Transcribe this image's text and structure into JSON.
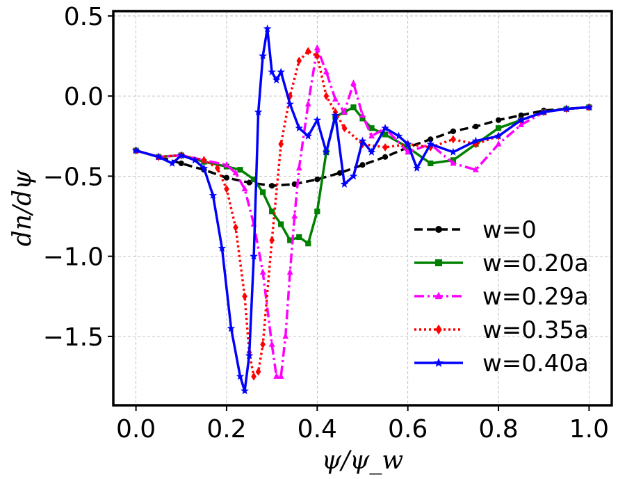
{
  "chart_data": {
    "type": "line",
    "title": "",
    "xlabel": "ψ/ψ_w",
    "ylabel": "dn/dψ",
    "xlim": [
      -0.05,
      1.05
    ],
    "ylim": [
      -1.93,
      0.53
    ],
    "grid": true,
    "legend_position": "lower-right",
    "xticks": [
      0.0,
      0.2,
      0.4,
      0.6,
      0.8,
      1.0
    ],
    "xtick_labels": [
      "0.0",
      "0.2",
      "0.4",
      "0.6",
      "0.8",
      "1.0"
    ],
    "yticks": [
      0.5,
      0.0,
      -0.5,
      -1.0,
      -1.5
    ],
    "ytick_labels": [
      "0.5",
      "0.0",
      "−0.5",
      "−1.0",
      "−1.5"
    ],
    "series": [
      {
        "name": "w=0",
        "color": "#000000",
        "linestyle": "dashed",
        "marker": "circle",
        "x": [
          0.0,
          0.05,
          0.1,
          0.15,
          0.2,
          0.25,
          0.3,
          0.35,
          0.4,
          0.45,
          0.5,
          0.55,
          0.6,
          0.65,
          0.7,
          0.75,
          0.8,
          0.85,
          0.9,
          0.95,
          1.0
        ],
        "y": [
          -0.34,
          -0.38,
          -0.42,
          -0.46,
          -0.51,
          -0.54,
          -0.56,
          -0.55,
          -0.52,
          -0.48,
          -0.43,
          -0.38,
          -0.32,
          -0.27,
          -0.22,
          -0.19,
          -0.15,
          -0.12,
          -0.09,
          -0.08,
          -0.07
        ]
      },
      {
        "name": "w=0.20a",
        "color": "#008000",
        "linestyle": "solid",
        "marker": "square",
        "x": [
          0.0,
          0.05,
          0.1,
          0.15,
          0.2,
          0.23,
          0.26,
          0.28,
          0.3,
          0.32,
          0.34,
          0.36,
          0.38,
          0.4,
          0.42,
          0.44,
          0.46,
          0.48,
          0.5,
          0.52,
          0.55,
          0.6,
          0.65,
          0.7,
          0.75,
          0.8,
          0.85,
          0.9,
          0.95,
          1.0
        ],
        "y": [
          -0.34,
          -0.38,
          -0.37,
          -0.41,
          -0.44,
          -0.46,
          -0.52,
          -0.6,
          -0.72,
          -0.8,
          -0.9,
          -0.88,
          -0.92,
          -0.72,
          -0.35,
          -0.13,
          -0.1,
          -0.07,
          -0.14,
          -0.2,
          -0.24,
          -0.32,
          -0.42,
          -0.4,
          -0.3,
          -0.2,
          -0.15,
          -0.1,
          -0.08,
          -0.07
        ]
      },
      {
        "name": "w=0.29a",
        "color": "#ff00ff",
        "linestyle": "dashdot",
        "marker": "triangle",
        "x": [
          0.0,
          0.05,
          0.1,
          0.15,
          0.2,
          0.22,
          0.24,
          0.26,
          0.28,
          0.3,
          0.31,
          0.32,
          0.33,
          0.34,
          0.35,
          0.36,
          0.38,
          0.4,
          0.42,
          0.44,
          0.46,
          0.48,
          0.5,
          0.52,
          0.55,
          0.6,
          0.65,
          0.7,
          0.75,
          0.8,
          0.85,
          0.9,
          0.95,
          1.0
        ],
        "y": [
          -0.34,
          -0.38,
          -0.37,
          -0.4,
          -0.43,
          -0.48,
          -0.58,
          -0.8,
          -1.1,
          -1.55,
          -1.75,
          -1.75,
          -1.5,
          -1.1,
          -0.75,
          -0.45,
          -0.05,
          0.3,
          0.15,
          -0.02,
          -0.1,
          0.08,
          -0.12,
          -0.25,
          -0.2,
          -0.35,
          -0.3,
          -0.42,
          -0.46,
          -0.3,
          -0.18,
          -0.1,
          -0.08,
          -0.07
        ]
      },
      {
        "name": "w=0.35a",
        "color": "#ff0000",
        "linestyle": "dotted",
        "marker": "diamond",
        "x": [
          0.0,
          0.05,
          0.1,
          0.15,
          0.18,
          0.2,
          0.22,
          0.24,
          0.25,
          0.26,
          0.27,
          0.28,
          0.3,
          0.32,
          0.34,
          0.36,
          0.38,
          0.4,
          0.42,
          0.44,
          0.46,
          0.5,
          0.55,
          0.6,
          0.65,
          0.7,
          0.75,
          0.8,
          0.85,
          0.9,
          0.95,
          1.0
        ],
        "y": [
          -0.34,
          -0.38,
          -0.37,
          -0.4,
          -0.45,
          -0.58,
          -0.82,
          -1.25,
          -1.6,
          -1.75,
          -1.72,
          -1.55,
          -0.9,
          -0.3,
          0.0,
          0.22,
          0.28,
          0.25,
          0.0,
          -0.1,
          -0.2,
          -0.3,
          -0.32,
          -0.3,
          -0.32,
          -0.27,
          -0.3,
          -0.25,
          -0.15,
          -0.1,
          -0.08,
          -0.07
        ]
      },
      {
        "name": "w=0.40a",
        "color": "#0000ff",
        "linestyle": "solid",
        "marker": "star",
        "x": [
          0.0,
          0.05,
          0.08,
          0.1,
          0.13,
          0.15,
          0.17,
          0.19,
          0.21,
          0.23,
          0.24,
          0.25,
          0.26,
          0.27,
          0.28,
          0.29,
          0.3,
          0.31,
          0.32,
          0.34,
          0.36,
          0.38,
          0.4,
          0.42,
          0.44,
          0.46,
          0.48,
          0.5,
          0.52,
          0.55,
          0.58,
          0.6,
          0.62,
          0.65,
          0.7,
          0.75,
          0.8,
          0.85,
          0.9,
          0.95,
          1.0
        ],
        "y": [
          -0.34,
          -0.38,
          -0.42,
          -0.37,
          -0.4,
          -0.45,
          -0.62,
          -0.95,
          -1.45,
          -1.75,
          -1.84,
          -1.62,
          -1.0,
          -0.1,
          0.25,
          0.42,
          0.15,
          0.1,
          0.15,
          -0.05,
          -0.2,
          -0.25,
          -0.15,
          -0.35,
          -0.12,
          -0.55,
          -0.5,
          -0.28,
          -0.35,
          -0.2,
          -0.25,
          -0.3,
          -0.45,
          -0.3,
          -0.35,
          -0.28,
          -0.25,
          -0.15,
          -0.1,
          -0.08,
          -0.07
        ]
      }
    ]
  }
}
